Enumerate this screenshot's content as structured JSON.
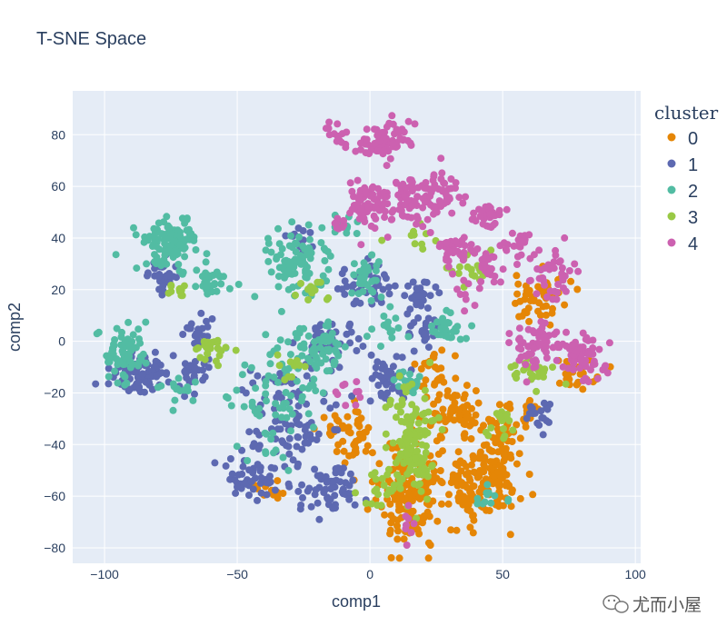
{
  "chart_data": {
    "type": "scatter",
    "title": "T-SNE Space",
    "xlabel": "comp1",
    "ylabel": "comp2",
    "xlim": [
      -112,
      102
    ],
    "ylim": [
      -86,
      97
    ],
    "xticks": [
      -100,
      -50,
      0,
      50,
      100
    ],
    "yticks": [
      -80,
      -60,
      -40,
      -20,
      0,
      20,
      40,
      60,
      80
    ],
    "xtick_labels": [
      "−100",
      "−50",
      "0",
      "50",
      "100"
    ],
    "ytick_labels": [
      "−80",
      "−60",
      "−40",
      "−20",
      "0",
      "20",
      "40",
      "60",
      "80"
    ],
    "grid": true,
    "legend": {
      "title": "cluster",
      "position": "right"
    },
    "series": [
      {
        "name": "0",
        "color": "#E58606",
        "clusters": [
          {
            "cx": 15,
            "cy": -58,
            "sx": 6,
            "sy": 10,
            "n": 160
          },
          {
            "cx": 43,
            "cy": -55,
            "sx": 7,
            "sy": 8,
            "n": 140
          },
          {
            "cx": 33,
            "cy": -28,
            "sx": 5,
            "sy": 6,
            "n": 60
          },
          {
            "cx": 50,
            "cy": -37,
            "sx": 4,
            "sy": 5,
            "n": 40
          },
          {
            "cx": 63,
            "cy": 18,
            "sx": 5,
            "sy": 5,
            "n": 50
          },
          {
            "cx": 79,
            "cy": -13,
            "sx": 4,
            "sy": 3,
            "n": 30
          },
          {
            "cx": -5,
            "cy": -38,
            "sx": 4,
            "sy": 6,
            "n": 35
          },
          {
            "cx": -13,
            "cy": -33,
            "sx": 3,
            "sy": 3,
            "n": 20
          },
          {
            "cx": 26,
            "cy": -13,
            "sx": 4,
            "sy": 5,
            "n": 30
          },
          {
            "cx": -38,
            "cy": -57,
            "sx": 3,
            "sy": 3,
            "n": 10
          },
          {
            "cx": 58,
            "cy": -27,
            "sx": 4,
            "sy": 3,
            "n": 20
          }
        ]
      },
      {
        "name": "1",
        "color": "#5D69B1",
        "clusters": [
          {
            "cx": -87,
            "cy": -13,
            "sx": 5,
            "sy": 4,
            "n": 90
          },
          {
            "cx": -78,
            "cy": 25,
            "sx": 3,
            "sy": 3,
            "n": 35
          },
          {
            "cx": -65,
            "cy": 3,
            "sx": 3,
            "sy": 3,
            "n": 25
          },
          {
            "cx": -67,
            "cy": -13,
            "sx": 3,
            "sy": 4,
            "n": 25
          },
          {
            "cx": -45,
            "cy": -53,
            "sx": 5,
            "sy": 5,
            "n": 50
          },
          {
            "cx": -30,
            "cy": -28,
            "sx": 8,
            "sy": 12,
            "n": 90
          },
          {
            "cx": -14,
            "cy": -57,
            "sx": 6,
            "sy": 5,
            "n": 55
          },
          {
            "cx": 0,
            "cy": 22,
            "sx": 6,
            "sy": 5,
            "n": 50
          },
          {
            "cx": 7,
            "cy": -13,
            "sx": 4,
            "sy": 5,
            "n": 40
          },
          {
            "cx": 20,
            "cy": 5,
            "sx": 4,
            "sy": 4,
            "n": 30
          },
          {
            "cx": 63,
            "cy": -27,
            "sx": 4,
            "sy": 3,
            "n": 20
          },
          {
            "cx": -27,
            "cy": 40,
            "sx": 3,
            "sy": 3,
            "n": 12
          },
          {
            "cx": 19,
            "cy": 18,
            "sx": 4,
            "sy": 3,
            "n": 20
          },
          {
            "cx": -15,
            "cy": 0,
            "sx": 5,
            "sy": 5,
            "n": 40
          }
        ]
      },
      {
        "name": "2",
        "color": "#52BCA3",
        "clusters": [
          {
            "cx": -75,
            "cy": 38,
            "sx": 5,
            "sy": 5,
            "n": 110
          },
          {
            "cx": -92,
            "cy": -5,
            "sx": 4,
            "sy": 5,
            "n": 70
          },
          {
            "cx": -60,
            "cy": 23,
            "sx": 3,
            "sy": 3,
            "n": 30
          },
          {
            "cx": -27,
            "cy": 30,
            "sx": 7,
            "sy": 8,
            "n": 90
          },
          {
            "cx": -20,
            "cy": -3,
            "sx": 6,
            "sy": 5,
            "n": 60
          },
          {
            "cx": -35,
            "cy": -23,
            "sx": 8,
            "sy": 10,
            "n": 70
          },
          {
            "cx": 28,
            "cy": 5,
            "sx": 4,
            "sy": 3,
            "n": 30
          },
          {
            "cx": 0,
            "cy": 27,
            "sx": 3,
            "sy": 5,
            "n": 30
          },
          {
            "cx": 8,
            "cy": 5,
            "sx": 3,
            "sy": 3,
            "n": 15
          },
          {
            "cx": -72,
            "cy": -18,
            "sx": 3,
            "sy": 3,
            "n": 15
          },
          {
            "cx": -10,
            "cy": 45,
            "sx": 3,
            "sy": 3,
            "n": 10
          },
          {
            "cx": 15,
            "cy": -15,
            "sx": 4,
            "sy": 3,
            "n": 20
          },
          {
            "cx": 45,
            "cy": -60,
            "sx": 3,
            "sy": 3,
            "n": 12
          }
        ]
      },
      {
        "name": "3",
        "color": "#99C945",
        "clusters": [
          {
            "cx": 15,
            "cy": -35,
            "sx": 4,
            "sy": 10,
            "n": 110
          },
          {
            "cx": -59,
            "cy": -3,
            "sx": 3,
            "sy": 3,
            "n": 25
          },
          {
            "cx": -72,
            "cy": 20,
            "sx": 2,
            "sy": 2,
            "n": 12
          },
          {
            "cx": 38,
            "cy": 27,
            "sx": 4,
            "sy": 3,
            "n": 20
          },
          {
            "cx": 5,
            "cy": -58,
            "sx": 6,
            "sy": 4,
            "n": 25
          },
          {
            "cx": -22,
            "cy": 20,
            "sx": 3,
            "sy": 3,
            "n": 15
          },
          {
            "cx": 62,
            "cy": -12,
            "sx": 5,
            "sy": 3,
            "n": 25
          },
          {
            "cx": 20,
            "cy": 42,
            "sx": 4,
            "sy": 3,
            "n": 10
          },
          {
            "cx": 50,
            "cy": -32,
            "sx": 3,
            "sy": 3,
            "n": 15
          },
          {
            "cx": 20,
            "cy": -48,
            "sx": 3,
            "sy": 3,
            "n": 12
          },
          {
            "cx": -30,
            "cy": -10,
            "sx": 3,
            "sy": 3,
            "n": 12
          }
        ]
      },
      {
        "name": "4",
        "color": "#CC61B0",
        "clusters": [
          {
            "cx": 5,
            "cy": 78,
            "sx": 5,
            "sy": 4,
            "n": 70
          },
          {
            "cx": -2,
            "cy": 53,
            "sx": 4,
            "sy": 5,
            "n": 60
          },
          {
            "cx": 15,
            "cy": 55,
            "sx": 5,
            "sy": 5,
            "n": 70
          },
          {
            "cx": 27,
            "cy": 58,
            "sx": 4,
            "sy": 5,
            "n": 40
          },
          {
            "cx": 33,
            "cy": 36,
            "sx": 4,
            "sy": 3,
            "n": 40
          },
          {
            "cx": 44,
            "cy": 48,
            "sx": 3,
            "sy": 3,
            "n": 30
          },
          {
            "cx": 45,
            "cy": 30,
            "sx": 3,
            "sy": 3,
            "n": 25
          },
          {
            "cx": 55,
            "cy": 37,
            "sx": 3,
            "sy": 3,
            "n": 20
          },
          {
            "cx": 67,
            "cy": 25,
            "sx": 5,
            "sy": 5,
            "n": 40
          },
          {
            "cx": 63,
            "cy": -2,
            "sx": 5,
            "sy": 4,
            "n": 60
          },
          {
            "cx": 81,
            "cy": -6,
            "sx": 4,
            "sy": 4,
            "n": 60
          },
          {
            "cx": -12,
            "cy": 80,
            "sx": 3,
            "sy": 2,
            "n": 15
          },
          {
            "cx": -12,
            "cy": 45,
            "sx": 2,
            "sy": 2,
            "n": 8
          },
          {
            "cx": 37,
            "cy": 20,
            "sx": 3,
            "sy": 3,
            "n": 10
          },
          {
            "cx": -8,
            "cy": -20,
            "sx": 3,
            "sy": 3,
            "n": 10
          },
          {
            "cx": 15,
            "cy": -70,
            "sx": 3,
            "sy": 3,
            "n": 8
          }
        ]
      }
    ]
  },
  "watermark": {
    "text": "尤而小屋"
  },
  "colors": {
    "plot_bg": "#E5ECF6",
    "grid": "#ffffff",
    "text": "#2a3f5f"
  }
}
